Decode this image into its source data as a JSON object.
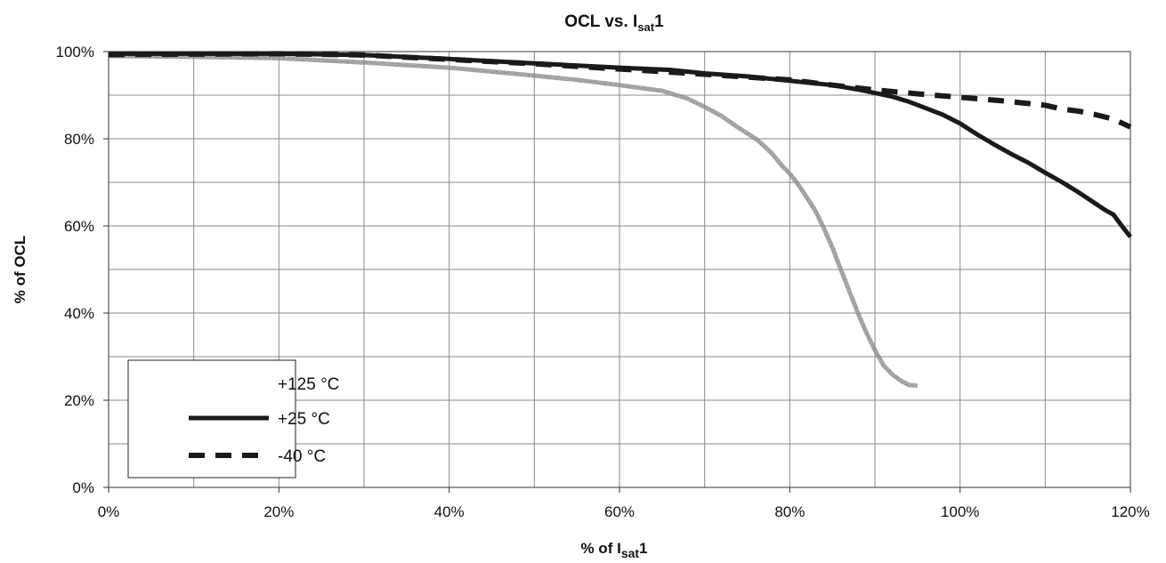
{
  "chart_data": {
    "type": "line",
    "title": {
      "main": "OCL vs. I",
      "sub": "sat",
      "suffix": "1"
    },
    "xlabel": {
      "main": "% of  I",
      "sub": "sat",
      "suffix": "1"
    },
    "ylabel": "% of OCL",
    "xlim": [
      0,
      120
    ],
    "ylim": [
      0,
      100
    ],
    "grid": true,
    "legend_position": "bottom-left",
    "x_ticks": [
      {
        "value": 0,
        "label": "0%"
      },
      {
        "value": 20,
        "label": "20%"
      },
      {
        "value": 40,
        "label": "40%"
      },
      {
        "value": 60,
        "label": "60%"
      },
      {
        "value": 80,
        "label": "80%"
      },
      {
        "value": 100,
        "label": "100%"
      },
      {
        "value": 120,
        "label": "120%"
      }
    ],
    "y_ticks": [
      {
        "value": 0,
        "label": "0%"
      },
      {
        "value": 20,
        "label": "20%"
      },
      {
        "value": 40,
        "label": "40%"
      },
      {
        "value": 60,
        "label": "60%"
      },
      {
        "value": 80,
        "label": "80%"
      },
      {
        "value": 100,
        "label": "100%"
      }
    ],
    "series": [
      {
        "name": "+125 °C",
        "color": "#8c8c8c",
        "style": "textured",
        "x": [
          0,
          10,
          20,
          30,
          40,
          50,
          55,
          60,
          65,
          68,
          70,
          72,
          74,
          76,
          77,
          78,
          79,
          80,
          81,
          82,
          83,
          84,
          85,
          86,
          87,
          88,
          89,
          90,
          91,
          92,
          93,
          94,
          95
        ],
        "y": [
          99,
          98.8,
          98.5,
          97.5,
          96.3,
          94.5,
          93.5,
          92.3,
          91,
          89.2,
          87.3,
          85.2,
          82.5,
          80,
          78.3,
          76.4,
          74,
          72,
          69.5,
          66.5,
          63.5,
          59.5,
          55,
          50,
          45,
          40,
          35.5,
          31.5,
          28,
          26,
          24.5,
          23.5,
          23.3
        ]
      },
      {
        "name": "+25 °C",
        "color": "#1a1a1a",
        "style": "solid",
        "x": [
          0,
          10,
          20,
          30,
          40,
          50,
          60,
          66,
          70,
          75,
          80,
          85,
          88,
          90,
          92,
          94,
          96,
          98,
          100,
          102,
          104,
          106,
          108,
          110,
          112,
          114,
          116,
          117,
          118,
          119,
          120
        ],
        "y": [
          99.5,
          99.5,
          99.5,
          99.2,
          98.3,
          97.3,
          96.3,
          95.8,
          95,
          94.3,
          93.3,
          92.3,
          91.3,
          90.5,
          89.7,
          88.5,
          87,
          85.5,
          83.5,
          81,
          78.7,
          76.5,
          74.5,
          72.2,
          70,
          67.6,
          65,
          63.7,
          62.6,
          60,
          57.5
        ]
      },
      {
        "name": "-40 °C",
        "color": "#1a1a1a",
        "style": "dashed",
        "x": [
          0,
          10,
          20,
          30,
          40,
          50,
          60,
          70,
          80,
          85,
          90,
          95,
          100,
          105,
          110,
          112,
          114,
          116,
          118,
          120
        ],
        "y": [
          99.3,
          99.4,
          99.5,
          99.2,
          98.2,
          97.2,
          96,
          94.8,
          93.5,
          92.3,
          91.2,
          90.3,
          89.5,
          88.7,
          87.7,
          86.8,
          86.3,
          85.5,
          84.5,
          82.7
        ]
      }
    ]
  }
}
